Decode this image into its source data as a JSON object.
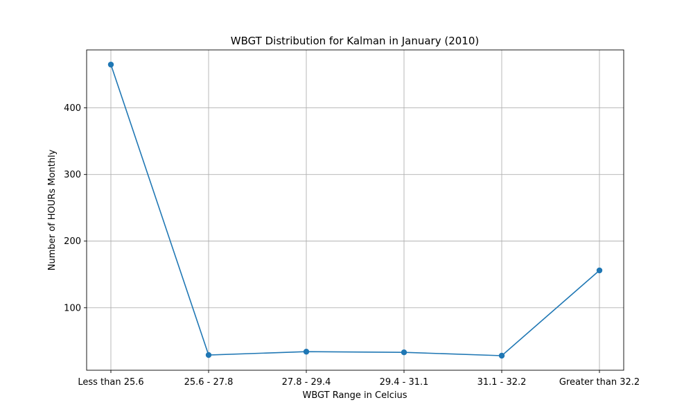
{
  "chart_data": {
    "type": "line",
    "title": "WBGT Distribution for Kalman in January (2010)",
    "xlabel": "WBGT Range in Celcius",
    "ylabel": "Number of HOURs Monthly",
    "categories": [
      "Less than 25.6",
      "25.6 - 27.8",
      "27.8 - 29.4",
      "29.4 - 31.1",
      "31.1 - 32.2",
      "Greater than 32.2"
    ],
    "series": [
      {
        "values": [
          465,
          29,
          34,
          33,
          28,
          156
        ],
        "color": "#1f77b4",
        "marker": "circle"
      }
    ],
    "yticks": [
      100,
      200,
      300,
      400
    ],
    "ylim": [
      6.15,
      487
    ],
    "grid": true,
    "legend": "none"
  }
}
